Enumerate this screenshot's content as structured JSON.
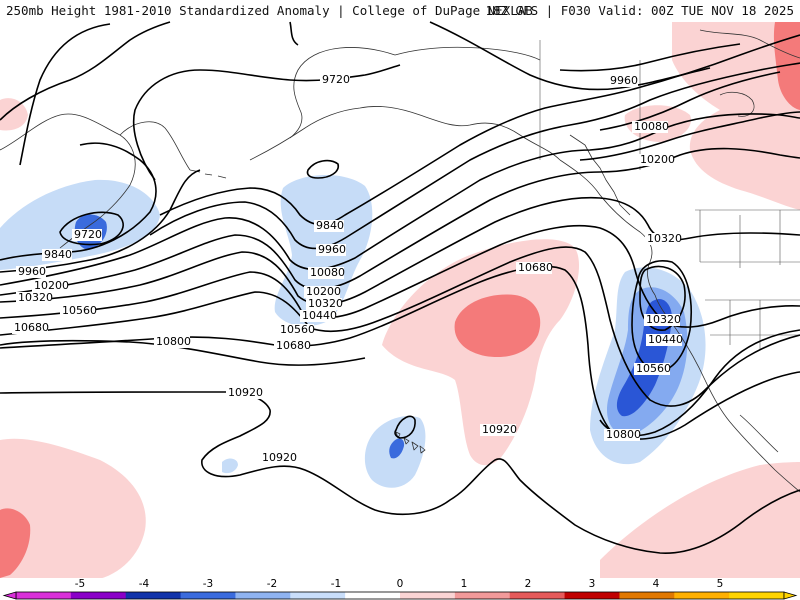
{
  "header": {
    "left": "250mb Height 1981-2010 Standardized Anomaly | College of DuPage NEXLAB",
    "right": "18Z GFS | F030 Valid: 00Z TUE NOV 18 2025"
  },
  "contour_labels": [
    {
      "id": "9720-bering",
      "text": "9720"
    },
    {
      "id": "9720-north",
      "text": "9720"
    },
    {
      "id": "9840-bering",
      "text": "9840"
    },
    {
      "id": "9840-mid",
      "text": "9840"
    },
    {
      "id": "9960-bering",
      "text": "9960"
    },
    {
      "id": "9960-mid",
      "text": "9960"
    },
    {
      "id": "9960-ne",
      "text": "9960"
    },
    {
      "id": "10080-mid",
      "text": "10080"
    },
    {
      "id": "10080-ne",
      "text": "10080"
    },
    {
      "id": "10200-west",
      "text": "10200"
    },
    {
      "id": "10200-mid",
      "text": "10200"
    },
    {
      "id": "10200-ne",
      "text": "10200"
    },
    {
      "id": "10320-west",
      "text": "10320"
    },
    {
      "id": "10320-mid",
      "text": "10320"
    },
    {
      "id": "10320-east",
      "text": "10320"
    },
    {
      "id": "10320-low",
      "text": "10320"
    },
    {
      "id": "10440-mid",
      "text": "10440"
    },
    {
      "id": "10440-low",
      "text": "10440"
    },
    {
      "id": "10560-west",
      "text": "10560"
    },
    {
      "id": "10560-mid",
      "text": "10560"
    },
    {
      "id": "10560-low",
      "text": "10560"
    },
    {
      "id": "10680-west",
      "text": "10680"
    },
    {
      "id": "10680-mid",
      "text": "10680"
    },
    {
      "id": "10680-east",
      "text": "10680"
    },
    {
      "id": "10800-west",
      "text": "10800"
    },
    {
      "id": "10800-low",
      "text": "10800"
    },
    {
      "id": "10920-west",
      "text": "10920"
    },
    {
      "id": "10920-south",
      "text": "10920"
    },
    {
      "id": "10920-center",
      "text": "10920"
    }
  ],
  "colorbar": {
    "ticks": [
      "-5",
      "-4",
      "-3",
      "-2",
      "-1",
      "0",
      "1",
      "2",
      "3",
      "4",
      "5"
    ],
    "colors": [
      "#d930d9",
      "#8a00c8",
      "#1133aa",
      "#3a6bdd",
      "#8fb3f0",
      "#c9defa",
      "#ffffff",
      "#fad4d4",
      "#f29a9a",
      "#e65a5a",
      "#c00000",
      "#e07800",
      "#ffb000",
      "#ffd400"
    ]
  },
  "anomaly_colors": {
    "minus1": "#c6dcf7",
    "minus2": "#84aaf0",
    "minus3": "#2a56d6",
    "plus1": "#fbd3d3",
    "plus2": "#f47a7a"
  }
}
